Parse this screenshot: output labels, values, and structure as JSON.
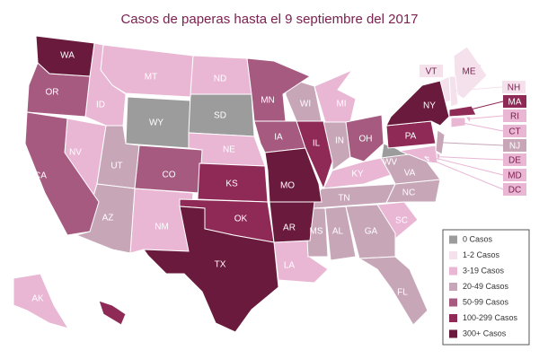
{
  "title": "Casos de paperas hasta el 9 septiembre del 2017",
  "legend": [
    {
      "label": "0 Casos",
      "color": "#9c9c9c",
      "states": [
        "WY",
        "SD",
        "WV"
      ]
    },
    {
      "label": "1-2 Casos",
      "color": "#f4e1ec",
      "states": [
        "VT",
        "ME",
        "NH"
      ]
    },
    {
      "label": "3-19 Casos",
      "color": "#e9b6d4",
      "states": [
        "MT",
        "ND",
        "ID",
        "NV",
        "NE",
        "NM",
        "MI",
        "KY",
        "LA",
        "SC",
        "AK",
        "DE",
        "MD",
        "DC",
        "RI",
        "CT"
      ]
    },
    {
      "label": "20-49 Casos",
      "color": "#c6a6b7",
      "states": [
        "UT",
        "AZ",
        "WI",
        "IN",
        "TN",
        "NC",
        "VA",
        "MS",
        "AL",
        "GA",
        "FL",
        "NJ"
      ]
    },
    {
      "label": "50-99 Casos",
      "color": "#a65a80",
      "states": [
        "OR",
        "CA",
        "CO",
        "MN",
        "IA",
        "OH"
      ]
    },
    {
      "label": "100-299 Casos",
      "color": "#8f2a57",
      "states": [
        "KS",
        "OK",
        "IL",
        "PA",
        "MA",
        "HI"
      ]
    },
    {
      "label": "300+ Casos",
      "color": "#6a1a3c",
      "states": [
        "WA",
        "TX",
        "MO",
        "AR",
        "NY"
      ]
    }
  ]
}
